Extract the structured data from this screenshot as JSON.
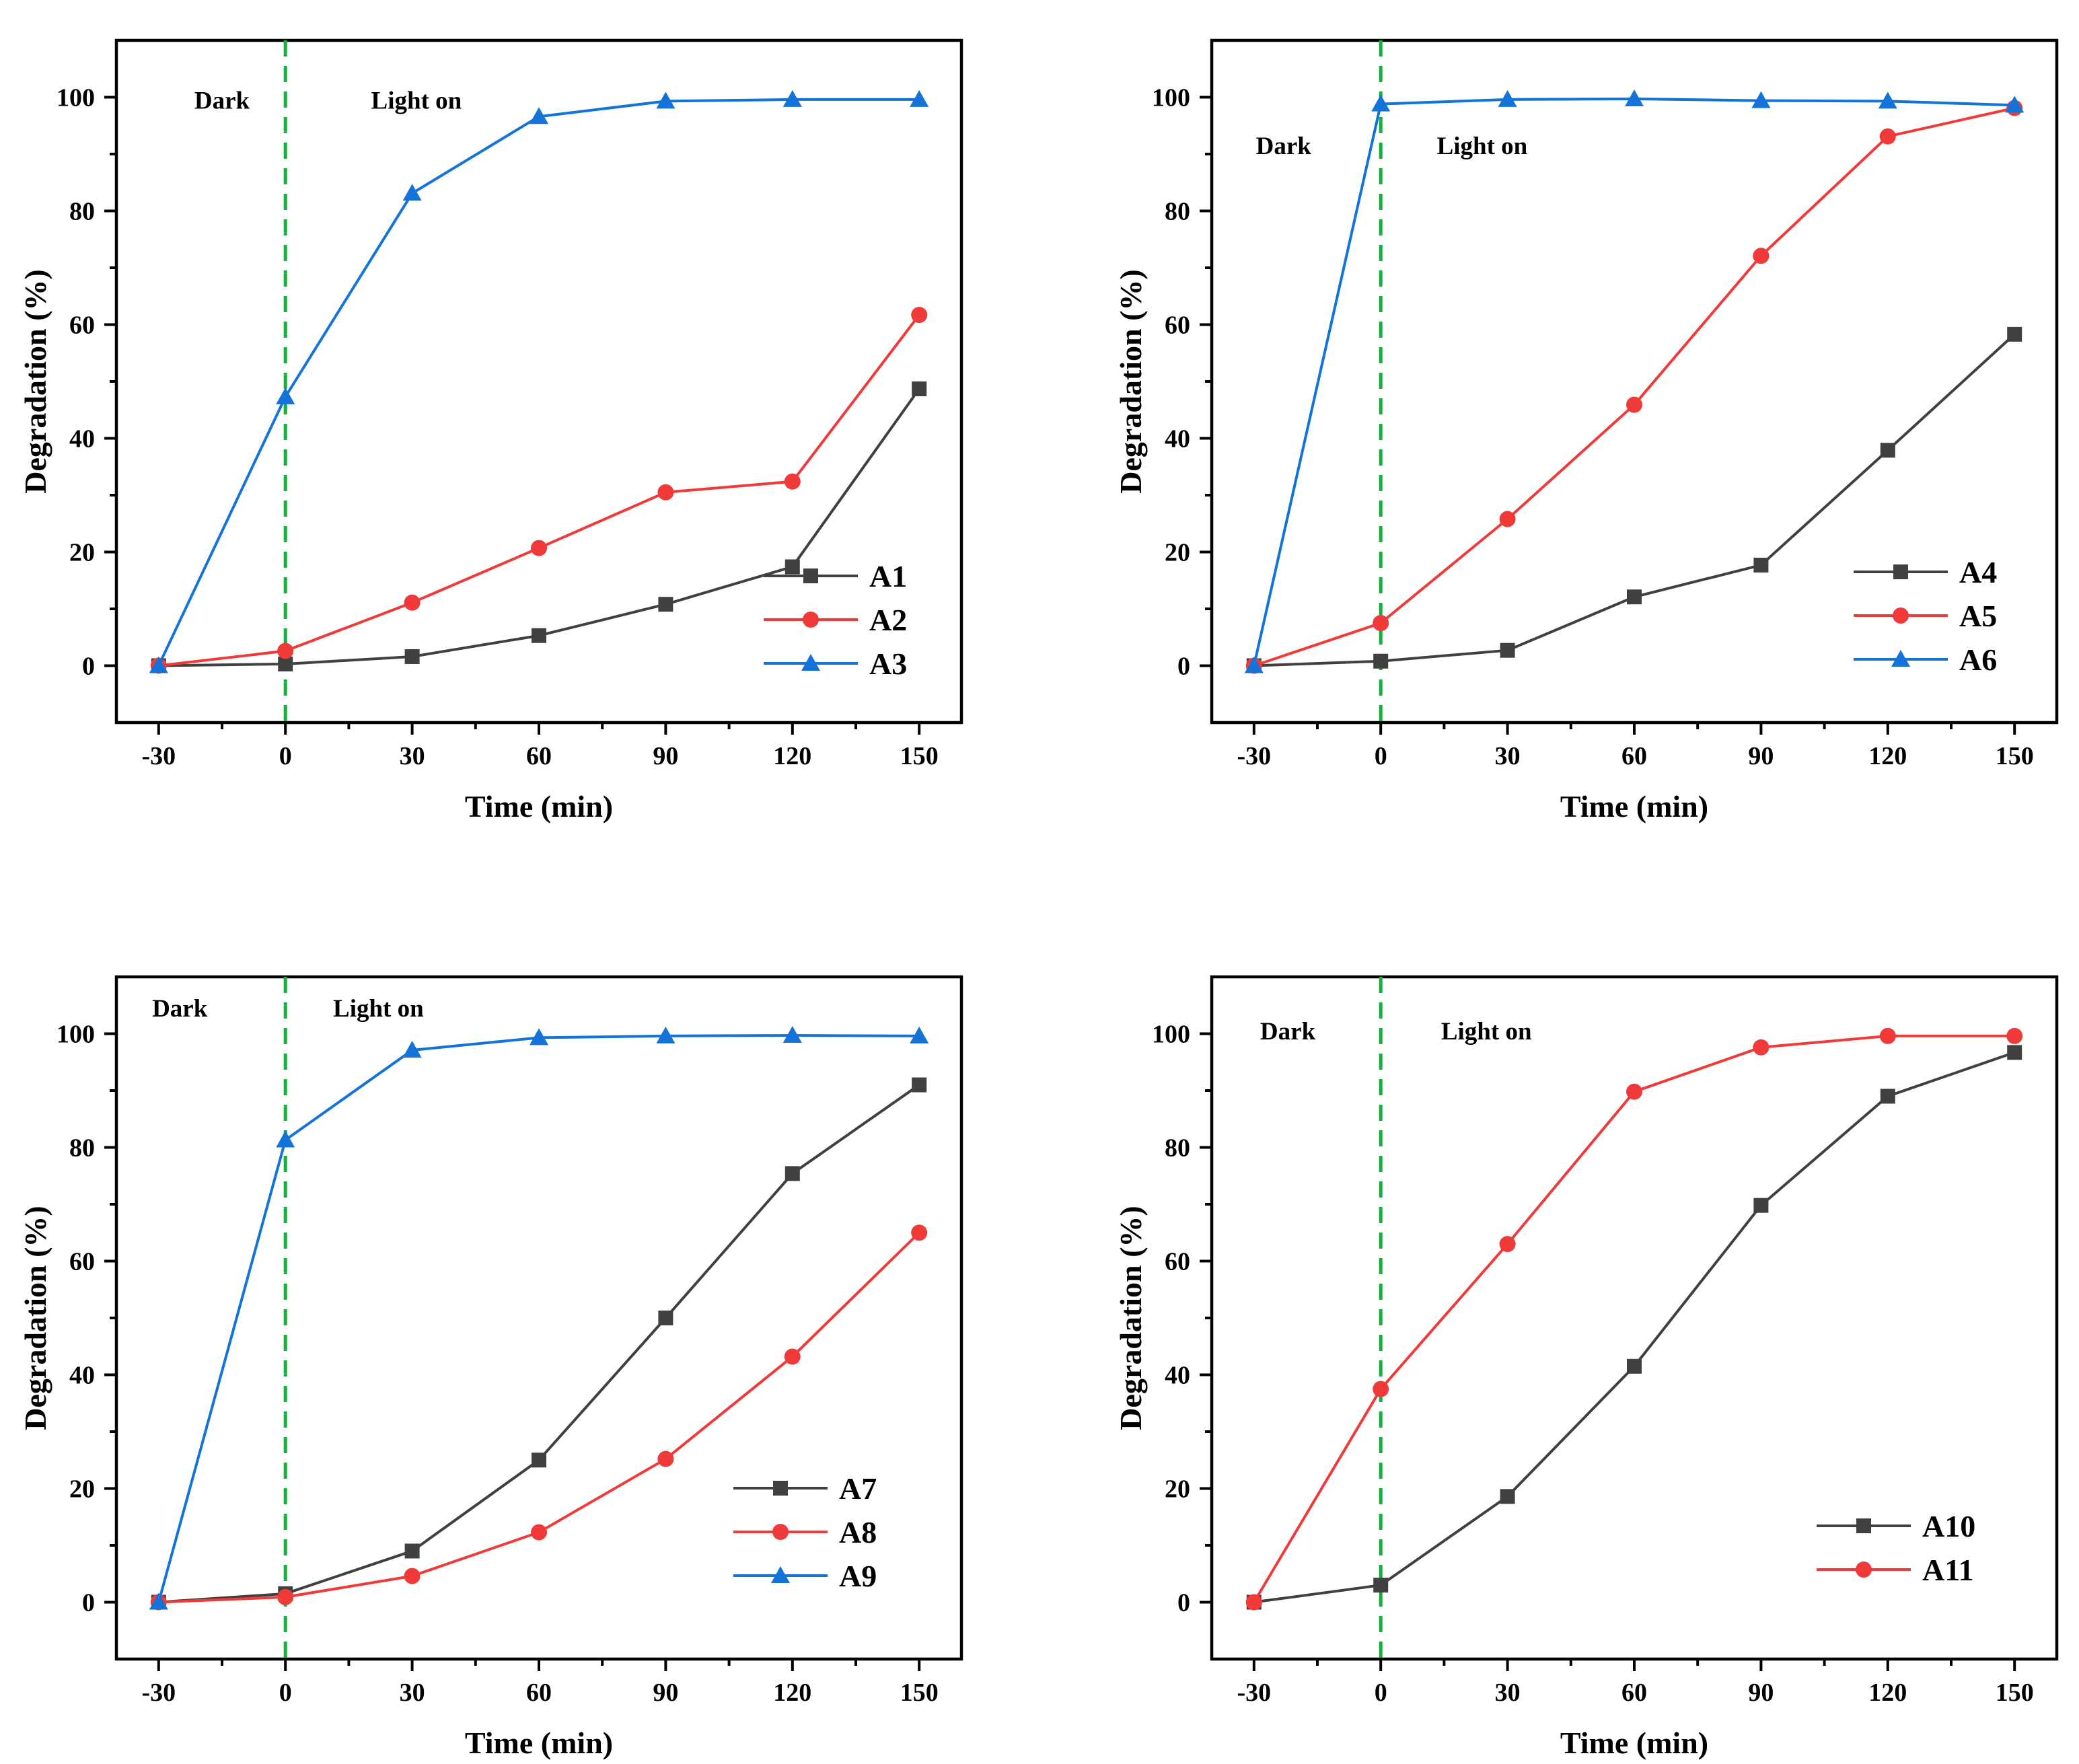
{
  "colors": {
    "A_black": "#404040",
    "A_red": "#f03a3a",
    "A_blue": "#1473d9",
    "divider": "#1aad3f"
  },
  "chart_data": [
    {
      "type": "line",
      "xlabel": "Time (min)",
      "ylabel": "Degradation (%)",
      "x": [
        -30,
        0,
        30,
        60,
        90,
        120,
        150
      ],
      "xticks": [
        "-30",
        "0",
        "30",
        "60",
        "90",
        "120",
        "150"
      ],
      "yticks": [
        "0",
        "20",
        "40",
        "60",
        "80",
        "100"
      ],
      "xlim": [
        -40,
        160
      ],
      "ylim": [
        -10,
        110
      ],
      "divider_x": 0,
      "annotations": [
        {
          "text": "Dark",
          "x": -15,
          "y": 98
        },
        {
          "text": "Light on",
          "x": 31,
          "y": 98
        }
      ],
      "legend": "bottom-right",
      "series": [
        {
          "name": "A1",
          "color": "#404040",
          "marker": "square",
          "values": [
            0,
            0.3,
            1.6,
            5.3,
            10.8,
            17.4,
            48.7
          ]
        },
        {
          "name": "A2",
          "color": "#f03a3a",
          "marker": "circle",
          "values": [
            0,
            2.6,
            11.1,
            20.7,
            30.5,
            32.4,
            61.7
          ]
        },
        {
          "name": "A3",
          "color": "#1473d9",
          "marker": "triangle",
          "values": [
            0,
            47.3,
            83.1,
            96.6,
            99.3,
            99.6,
            99.6
          ]
        }
      ]
    },
    {
      "type": "line",
      "xlabel": "Time (min)",
      "ylabel": "Degradation (%)",
      "x": [
        -30,
        0,
        30,
        60,
        90,
        120,
        150
      ],
      "xticks": [
        "-30",
        "0",
        "30",
        "60",
        "90",
        "120",
        "150"
      ],
      "yticks": [
        "0",
        "20",
        "40",
        "60",
        "80",
        "100"
      ],
      "xlim": [
        -40,
        160
      ],
      "ylim": [
        -10,
        110
      ],
      "divider_x": 0,
      "annotations": [
        {
          "text": "Dark",
          "x": -23,
          "y": 90
        },
        {
          "text": "Light on",
          "x": 24,
          "y": 90
        }
      ],
      "legend": "bottom-right",
      "series": [
        {
          "name": "A4",
          "color": "#404040",
          "marker": "square",
          "values": [
            0,
            0.8,
            2.7,
            12.1,
            17.7,
            37.9,
            58.3
          ]
        },
        {
          "name": "A5",
          "color": "#f03a3a",
          "marker": "circle",
          "values": [
            0,
            7.5,
            25.8,
            45.9,
            72.1,
            93.1,
            98.1
          ]
        },
        {
          "name": "A6",
          "color": "#1473d9",
          "marker": "triangle",
          "values": [
            0,
            98.8,
            99.6,
            99.7,
            99.4,
            99.3,
            98.6
          ]
        }
      ]
    },
    {
      "type": "line",
      "xlabel": "Time (min)",
      "ylabel": "Degradation (%)",
      "x": [
        -30,
        0,
        30,
        60,
        90,
        120,
        150
      ],
      "xticks": [
        "-30",
        "0",
        "30",
        "60",
        "90",
        "120",
        "150"
      ],
      "yticks": [
        "0",
        "20",
        "40",
        "60",
        "80",
        "100"
      ],
      "xlim": [
        -40,
        160
      ],
      "ylim": [
        -10,
        110
      ],
      "divider_x": 0,
      "annotations": [
        {
          "text": "Dark",
          "x": -25,
          "y": 103
        },
        {
          "text": "Light on",
          "x": 22,
          "y": 103
        }
      ],
      "legend": "bottom-right",
      "series": [
        {
          "name": "A7",
          "color": "#404040",
          "marker": "square",
          "values": [
            0,
            1.5,
            9.0,
            25.0,
            50.0,
            75.4,
            91.0
          ]
        },
        {
          "name": "A8",
          "color": "#f03a3a",
          "marker": "circle",
          "values": [
            0,
            0.9,
            4.6,
            12.3,
            25.2,
            43.2,
            65.0
          ]
        },
        {
          "name": "A9",
          "color": "#1473d9",
          "marker": "triangle",
          "values": [
            0,
            81.3,
            97.1,
            99.3,
            99.6,
            99.7,
            99.6
          ]
        }
      ]
    },
    {
      "type": "line",
      "xlabel": "Time (min)",
      "ylabel": "Degradation (%)",
      "x": [
        -30,
        0,
        30,
        60,
        90,
        120,
        150
      ],
      "xticks": [
        "-30",
        "0",
        "30",
        "60",
        "90",
        "120",
        "150"
      ],
      "yticks": [
        "0",
        "20",
        "40",
        "60",
        "80",
        "100"
      ],
      "xlim": [
        -40,
        160
      ],
      "ylim": [
        -10,
        110
      ],
      "divider_x": 0,
      "annotations": [
        {
          "text": "Dark",
          "x": -22,
          "y": 99
        },
        {
          "text": "Light on",
          "x": 25,
          "y": 99
        }
      ],
      "legend": "bottom-right",
      "series": [
        {
          "name": "A10",
          "color": "#404040",
          "marker": "square",
          "values": [
            0,
            3.0,
            18.6,
            41.5,
            69.8,
            89.0,
            96.7
          ]
        },
        {
          "name": "A11",
          "color": "#f03a3a",
          "marker": "circle",
          "values": [
            0,
            37.5,
            63.0,
            89.8,
            97.6,
            99.6,
            99.6
          ]
        }
      ]
    }
  ]
}
